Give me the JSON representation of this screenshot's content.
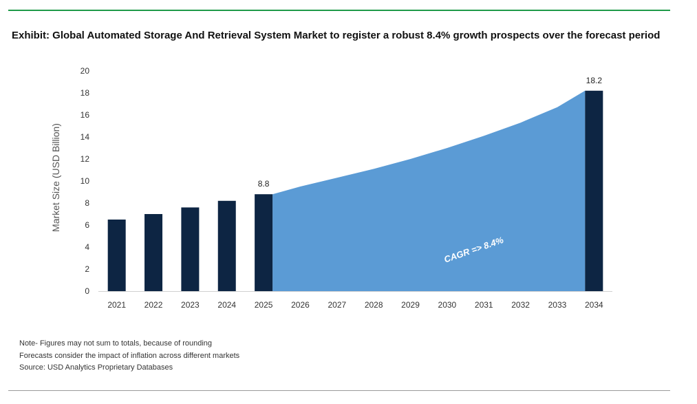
{
  "title": "Exhibit: Global Automated Storage And Retrieval System Market to register a robust 8.4% growth prospects over the forecast period",
  "colors": {
    "bar": "#0d2543",
    "area": "#5b9bd5",
    "rule_top": "#1f9a48",
    "rule_bottom": "#9a9a9a"
  },
  "notes": [
    "Note- Figures may not sum to totals, because of rounding",
    "Forecasts consider the impact of inflation across different markets",
    "Source: USD Analytics Proprietary Databases"
  ],
  "chart_data": {
    "type": "bar",
    "categories": [
      "2021",
      "2022",
      "2023",
      "2024",
      "2025",
      "2026",
      "2027",
      "2028",
      "2029",
      "2030",
      "2031",
      "2032",
      "2033",
      "2034"
    ],
    "series": [
      {
        "values": [
          6.5,
          7.0,
          7.6,
          8.2,
          8.8,
          null,
          null,
          null,
          null,
          null,
          null,
          null,
          null,
          18.2
        ]
      }
    ],
    "forecast_area": {
      "from": "2025",
      "to": "2034",
      "values": [
        8.8,
        9.5,
        10.3,
        11.1,
        12.0,
        13.0,
        14.1,
        15.3,
        16.7,
        18.2
      ]
    },
    "data_labels": [
      {
        "category": "2025",
        "text": "8.8"
      },
      {
        "category": "2034",
        "text": "18.2"
      }
    ],
    "annotation": "CAGR => 8.4%",
    "ylabel": "Market Size (USD Billion)",
    "xlabel": "",
    "ylim": [
      0,
      20
    ],
    "yticks": [
      0,
      2,
      4,
      6,
      8,
      10,
      12,
      14,
      16,
      18,
      20
    ],
    "grid": false,
    "legend": "none"
  }
}
